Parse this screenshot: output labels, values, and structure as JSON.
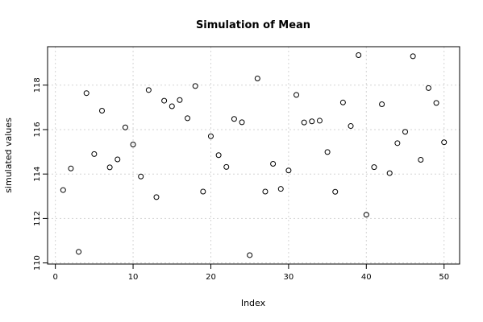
{
  "chart_data": {
    "type": "scatter",
    "title": "Simulation of Mean",
    "xlabel": "Index",
    "ylabel": "simulated values",
    "xlim": [
      -1,
      52
    ],
    "ylim": [
      109.95,
      119.73
    ],
    "x_ticks": [
      0,
      10,
      20,
      30,
      40,
      50
    ],
    "y_ticks": [
      110,
      112,
      114,
      116,
      118
    ],
    "grid": true,
    "x": [
      1,
      2,
      3,
      4,
      5,
      6,
      7,
      8,
      9,
      10,
      11,
      12,
      13,
      14,
      15,
      16,
      17,
      18,
      19,
      20,
      21,
      22,
      23,
      24,
      25,
      26,
      27,
      28,
      29,
      30,
      31,
      32,
      33,
      34,
      35,
      36,
      37,
      38,
      39,
      40,
      41,
      42,
      43,
      44,
      45,
      46,
      47,
      48,
      49,
      50
    ],
    "y": [
      113.28,
      114.25,
      110.5,
      117.64,
      114.9,
      116.85,
      114.3,
      114.66,
      116.1,
      115.33,
      113.89,
      117.78,
      112.96,
      117.3,
      117.05,
      117.33,
      116.51,
      117.96,
      113.21,
      115.7,
      114.85,
      114.32,
      116.48,
      116.33,
      110.35,
      118.3,
      113.21,
      114.46,
      113.33,
      114.16,
      117.56,
      116.32,
      116.37,
      116.4,
      114.99,
      113.2,
      117.22,
      116.16,
      119.35,
      112.17,
      114.31,
      117.14,
      114.04,
      115.39,
      115.9,
      119.3,
      114.64,
      117.87,
      117.2,
      115.43
    ]
  }
}
